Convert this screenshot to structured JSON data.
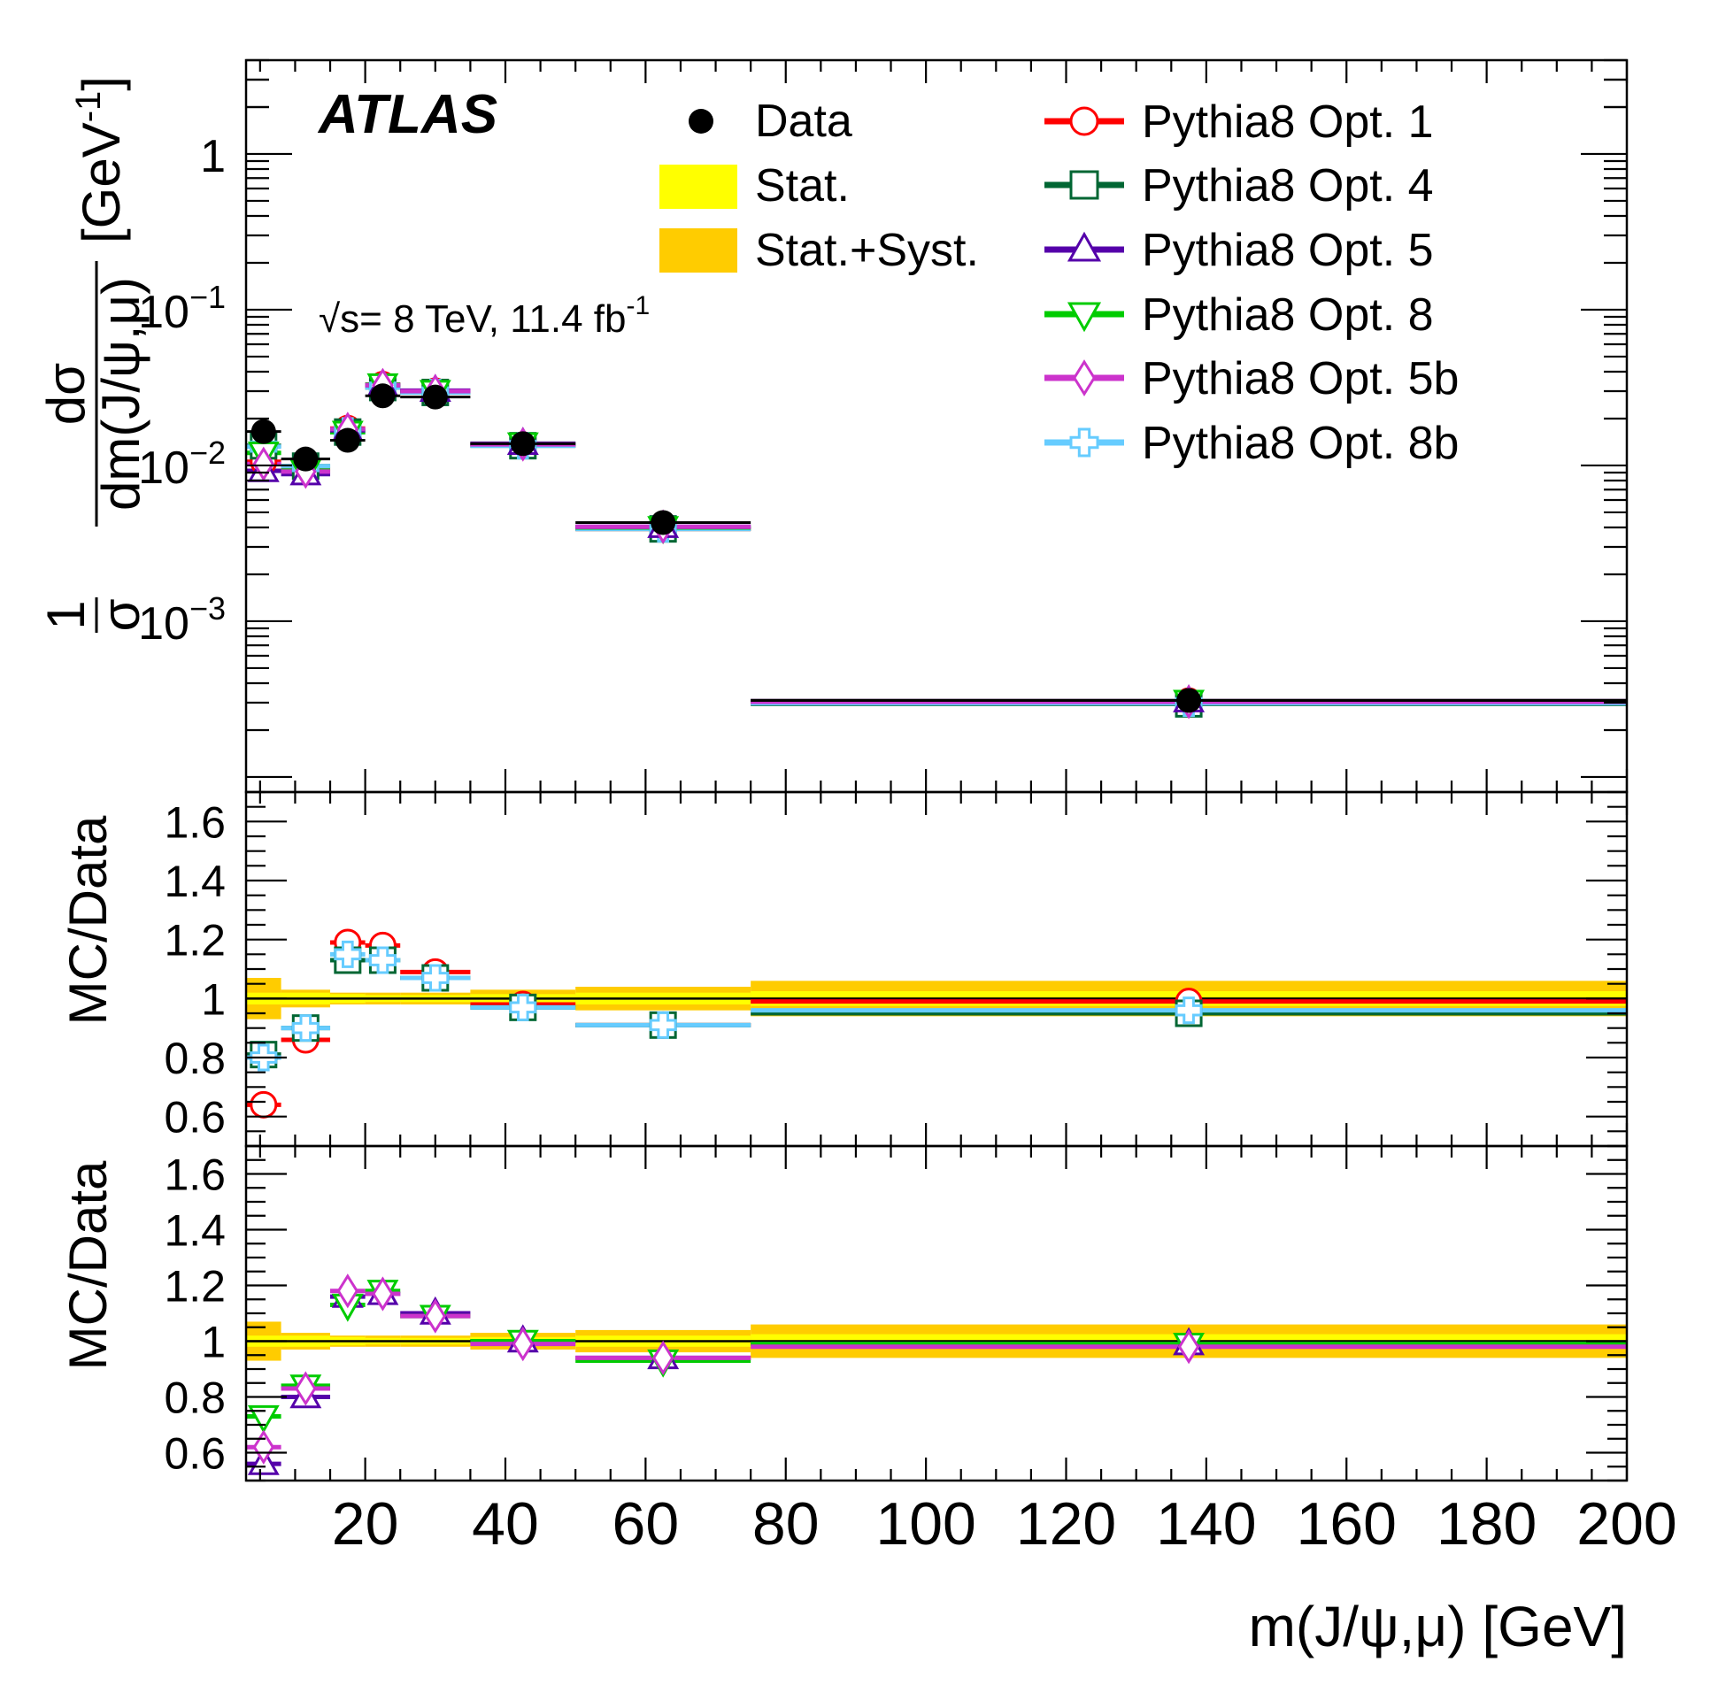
{
  "chart_data": {
    "type": "scatter",
    "experiment_label": "ATLAS",
    "energy_label": "√s= 8 TeV, 11.4 fb⁻¹",
    "energy": {
      "sqrt": "√",
      "s_text": "s= 8 TeV, 11.4 fb",
      "sup": "-1"
    },
    "xlabel": "m(J/ψ,μ) [GeV]",
    "ylabel": "1/σ dσ/dm(J/ψ,μ) [GeV⁻¹]",
    "ylabel_parts": {
      "one": "1",
      "sigma": "σ",
      "dsigma": "dσ",
      "denominator": "dm(J/ψ,μ)",
      "units": "[GeV",
      "units_sup": "-1",
      "units_close": "]"
    },
    "ratio_ylabel": "MC/Data",
    "xlim": [
      3,
      200
    ],
    "ylim_top": [
      8e-05,
      4
    ],
    "ylim_ratio": [
      0.5,
      1.7
    ],
    "yscale_top": "log",
    "x_ticks": [
      20,
      40,
      60,
      80,
      100,
      120,
      140,
      160,
      180,
      200
    ],
    "x_tick_labels": [
      "20",
      "40",
      "60",
      "80",
      "100",
      "120",
      "140",
      "160",
      "180",
      "200"
    ],
    "y_ticks_top": [
      0.001,
      0.01,
      0.1,
      1
    ],
    "y_tick_labels_top": [
      {
        "base": "10",
        "exp": "−3"
      },
      {
        "base": "10",
        "exp": "−2"
      },
      {
        "base": "10",
        "exp": "−1"
      },
      {
        "base": "1",
        "exp": ""
      }
    ],
    "y_ticks_ratio": [
      0.6,
      0.8,
      1,
      1.2,
      1.4,
      1.6
    ],
    "y_tick_labels_ratio": [
      "0.6",
      "0.8",
      "1",
      "1.2",
      "1.4",
      "1.6"
    ],
    "bins": [
      [
        3,
        8
      ],
      [
        8,
        15
      ],
      [
        15,
        20
      ],
      [
        20,
        25
      ],
      [
        25,
        35
      ],
      [
        35,
        50
      ],
      [
        50,
        75
      ],
      [
        75,
        200
      ]
    ],
    "bin_centers": [
      5.5,
      11.5,
      17.5,
      22.5,
      30,
      42.5,
      62.5,
      137.5
    ],
    "data": [
      0.0165,
      0.011,
      0.0145,
      0.028,
      0.0275,
      0.0138,
      0.0043,
      0.00031
    ],
    "stat_unc_rel": [
      0.02,
      0.02,
      0.015,
      0.012,
      0.012,
      0.015,
      0.02,
      0.025
    ],
    "syst_unc_rel": [
      0.07,
      0.03,
      0.02,
      0.02,
      0.02,
      0.03,
      0.04,
      0.06
    ],
    "series": [
      {
        "name": "Pythia8 Opt. 1",
        "color": "#ff0000",
        "marker": "circle-open",
        "ratio": [
          0.64,
          0.86,
          1.19,
          1.18,
          1.09,
          0.98,
          0.91,
          0.99
        ],
        "panel": 1
      },
      {
        "name": "Pythia8 Opt. 4",
        "color": "#006633",
        "marker": "square-open",
        "ratio": [
          0.81,
          0.9,
          1.13,
          1.13,
          1.07,
          0.97,
          0.91,
          0.95
        ],
        "panel": 1
      },
      {
        "name": "Pythia8 Opt. 5",
        "color": "#5500aa",
        "marker": "triangle-up-open",
        "ratio": [
          0.56,
          0.8,
          1.16,
          1.17,
          1.1,
          1.0,
          0.94,
          0.99
        ],
        "panel": 2
      },
      {
        "name": "Pythia8 Opt. 8",
        "color": "#00cc00",
        "marker": "triangle-down-open",
        "ratio": [
          0.73,
          0.84,
          1.13,
          1.18,
          1.09,
          1.0,
          0.93,
          0.99
        ],
        "panel": 2
      },
      {
        "name": "Pythia8 Opt. 5b",
        "color": "#cc33cc",
        "marker": "diamond-open",
        "ratio": [
          0.62,
          0.83,
          1.18,
          1.17,
          1.09,
          0.99,
          0.94,
          0.98
        ],
        "panel": 2
      },
      {
        "name": "Pythia8 Opt. 8b",
        "color": "#66ccff",
        "marker": "cross-open",
        "ratio": [
          0.8,
          0.9,
          1.15,
          1.13,
          1.07,
          0.97,
          0.91,
          0.96
        ],
        "panel": 1
      }
    ],
    "legend": {
      "placement": "top-right",
      "data_label": "Data",
      "stat_label": "Stat.",
      "statsyst_label": "Stat.+Syst.",
      "stat_color": "#ffff00",
      "statsyst_color": "#ffcc00",
      "data_color": "#000000"
    }
  }
}
